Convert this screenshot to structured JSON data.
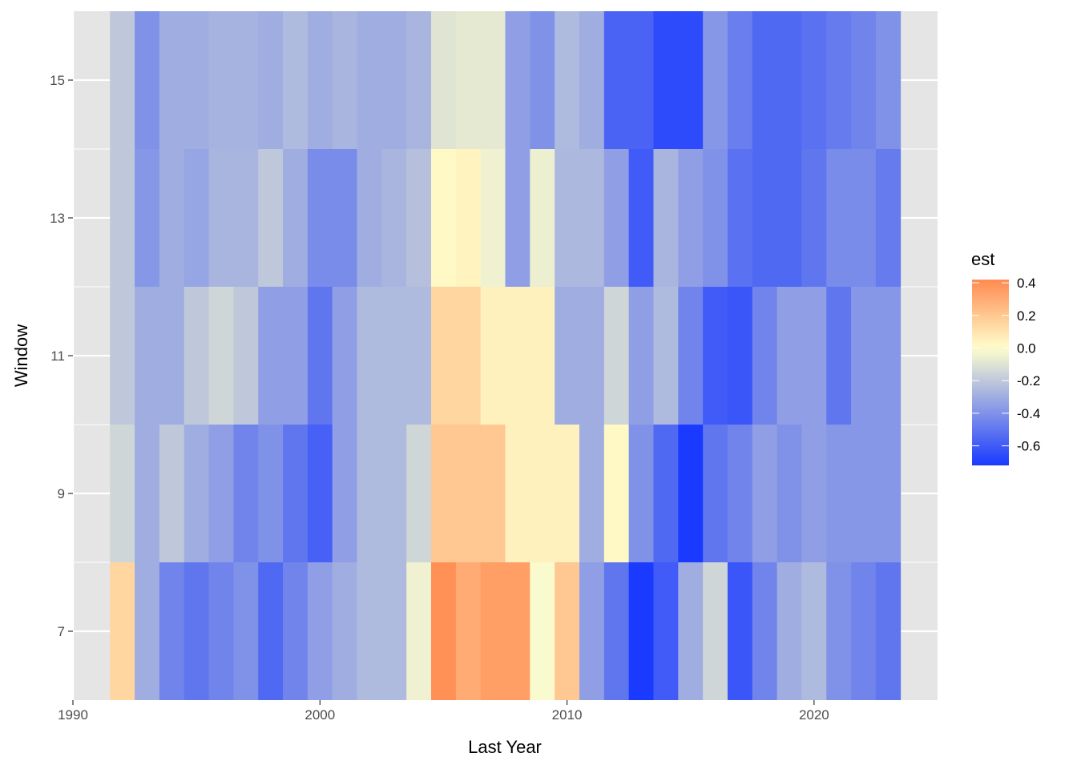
{
  "chart_data": {
    "type": "heatmap",
    "title": "",
    "xlabel": "Last Year",
    "ylabel": "Window",
    "x_ticks": [
      1990,
      2000,
      2010,
      2020
    ],
    "y_ticks": [
      7,
      9,
      11,
      13,
      15
    ],
    "xlim": [
      1990,
      2025
    ],
    "ylim": [
      6,
      16
    ],
    "x": [
      1992,
      1993,
      1994,
      1995,
      1996,
      1997,
      1998,
      1999,
      2000,
      2001,
      2002,
      2003,
      2004,
      2005,
      2006,
      2007,
      2008,
      2009,
      2010,
      2011,
      2012,
      2013,
      2014,
      2015,
      2016,
      2017,
      2018,
      2019,
      2020,
      2021,
      2022,
      2023
    ],
    "rows": [
      {
        "window": 7,
        "ybottom": 6,
        "ytop": 8,
        "values": [
          0.15,
          -0.3,
          -0.45,
          -0.5,
          -0.45,
          -0.4,
          -0.55,
          -0.45,
          -0.35,
          -0.3,
          -0.25,
          -0.25,
          -0.05,
          0.4,
          0.3,
          0.35,
          0.35,
          -0.02,
          0.2,
          -0.35,
          -0.5,
          -0.72,
          -0.6,
          -0.3,
          -0.15,
          -0.62,
          -0.45,
          -0.3,
          -0.25,
          -0.4,
          -0.45,
          -0.5
        ]
      },
      {
        "window": 9,
        "ybottom": 8,
        "ytop": 10,
        "values": [
          -0.15,
          -0.3,
          -0.2,
          -0.3,
          -0.35,
          -0.45,
          -0.4,
          -0.5,
          -0.58,
          -0.35,
          -0.25,
          -0.25,
          -0.15,
          0.2,
          0.2,
          0.2,
          0.05,
          0.05,
          0.05,
          -0.3,
          0.02,
          -0.4,
          -0.55,
          -0.72,
          -0.5,
          -0.45,
          -0.35,
          -0.4,
          -0.35,
          -0.38,
          -0.38,
          -0.38
        ]
      },
      {
        "window": 11,
        "ybottom": 10,
        "ytop": 12,
        "values": [
          -0.2,
          -0.3,
          -0.3,
          -0.2,
          -0.15,
          -0.2,
          -0.35,
          -0.35,
          -0.5,
          -0.35,
          -0.25,
          -0.25,
          -0.25,
          0.15,
          0.15,
          0.05,
          0.05,
          0.05,
          -0.3,
          -0.3,
          -0.15,
          -0.35,
          -0.25,
          -0.45,
          -0.6,
          -0.62,
          -0.45,
          -0.35,
          -0.35,
          -0.5,
          -0.38,
          -0.38
        ]
      },
      {
        "window": 13,
        "ybottom": 12,
        "ytop": 14,
        "values": [
          -0.2,
          -0.38,
          -0.3,
          -0.33,
          -0.27,
          -0.27,
          -0.2,
          -0.3,
          -0.42,
          -0.42,
          -0.3,
          -0.27,
          -0.23,
          0.02,
          0.04,
          -0.05,
          -0.35,
          -0.06,
          -0.26,
          -0.26,
          -0.35,
          -0.6,
          -0.27,
          -0.35,
          -0.4,
          -0.52,
          -0.55,
          -0.55,
          -0.5,
          -0.42,
          -0.42,
          -0.48
        ]
      },
      {
        "window": 15,
        "ybottom": 14,
        "ytop": 16,
        "values": [
          -0.2,
          -0.4,
          -0.3,
          -0.3,
          -0.28,
          -0.28,
          -0.3,
          -0.25,
          -0.3,
          -0.27,
          -0.3,
          -0.3,
          -0.27,
          -0.1,
          -0.08,
          -0.08,
          -0.35,
          -0.4,
          -0.25,
          -0.3,
          -0.57,
          -0.57,
          -0.66,
          -0.66,
          -0.38,
          -0.47,
          -0.55,
          -0.55,
          -0.52,
          -0.48,
          -0.45,
          -0.4
        ]
      }
    ],
    "legend": {
      "title": "est",
      "position": "right",
      "breaks": [
        0.4,
        0.2,
        0.0,
        -0.2,
        -0.4,
        -0.6
      ],
      "break_labels": [
        "0.4",
        "0.2",
        "0.0",
        "-0.2",
        "-0.4",
        "-0.6"
      ],
      "range": [
        -0.72,
        0.42
      ]
    },
    "colors": {
      "low": "#1a3aff",
      "mid": "#ffffcc",
      "high": "#ff8a50",
      "panel_bg": "#e5e5e5",
      "grid": "#ffffff"
    }
  }
}
